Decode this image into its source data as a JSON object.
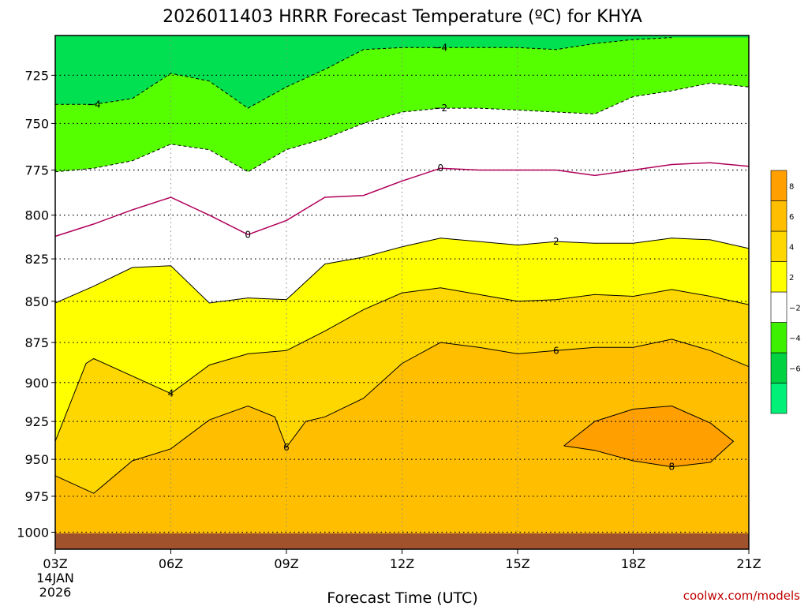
{
  "chart_data": {
    "type": "contour",
    "title": "2026011403 HRRR Forecast Temperature (ºC) for KHYA",
    "xlabel": "Forecast Time (UTC)",
    "ylabel": "",
    "x_ticks": [
      {
        "hour": 3,
        "label": "03Z",
        "label2": "14JAN",
        "label3": "2026"
      },
      {
        "hour": 6,
        "label": "06Z"
      },
      {
        "hour": 9,
        "label": "09Z"
      },
      {
        "hour": 12,
        "label": "12Z"
      },
      {
        "hour": 15,
        "label": "15Z"
      },
      {
        "hour": 18,
        "label": "18Z"
      },
      {
        "hour": 21,
        "label": "21Z"
      }
    ],
    "y_ticks": [
      725,
      750,
      775,
      800,
      825,
      850,
      875,
      900,
      925,
      950,
      975,
      1000
    ],
    "xlim": [
      3,
      21
    ],
    "ylim_hPa": [
      1012,
      705
    ],
    "y_scale": "log-pressure",
    "grid": "dotted",
    "legend": {
      "placement": "right",
      "levels": [
        {
          "label": "",
          "color": "#00f078"
        },
        {
          "label": "−6",
          "color": "#00d242"
        },
        {
          "label": "−4",
          "color": "#3cf000"
        },
        {
          "label": "−2",
          "color": "#ffffff"
        },
        {
          "label": "2",
          "color": "#ffff00"
        },
        {
          "label": "4",
          "color": "#ffd700"
        },
        {
          "label": "6",
          "color": "#ffbf00"
        },
        {
          "label": "8",
          "color": "#ff9f00"
        }
      ]
    },
    "contours": [
      {
        "label": "−4",
        "points": [
          [
            3,
            740
          ],
          [
            4,
            740
          ],
          [
            5,
            737
          ],
          [
            6,
            724
          ],
          [
            7,
            728
          ],
          [
            8,
            742
          ],
          [
            9,
            731
          ],
          [
            10,
            722
          ],
          [
            11,
            712
          ],
          [
            12,
            711
          ],
          [
            13,
            711
          ],
          [
            14,
            711
          ],
          [
            15,
            711
          ],
          [
            16,
            712
          ],
          [
            17,
            709
          ],
          [
            18,
            707
          ],
          [
            19,
            706
          ]
        ]
      },
      {
        "label": "−2",
        "points": [
          [
            3,
            776
          ],
          [
            4,
            774
          ],
          [
            5,
            770
          ],
          [
            6,
            761
          ],
          [
            7,
            764
          ],
          [
            8,
            776
          ],
          [
            9,
            764
          ],
          [
            10,
            758
          ],
          [
            11,
            750
          ],
          [
            12,
            744
          ],
          [
            13,
            742
          ],
          [
            14,
            742
          ],
          [
            15,
            743
          ],
          [
            16,
            744
          ],
          [
            17,
            745
          ],
          [
            18,
            736
          ],
          [
            19,
            733
          ],
          [
            20,
            729
          ],
          [
            21,
            731
          ]
        ]
      },
      {
        "label": "0",
        "points": [
          [
            3,
            812
          ],
          [
            4,
            805
          ],
          [
            5,
            797
          ],
          [
            6,
            790
          ],
          [
            7,
            800
          ],
          [
            8,
            811
          ],
          [
            9,
            803
          ],
          [
            10,
            790
          ],
          [
            11,
            789
          ],
          [
            12,
            781
          ],
          [
            13,
            774
          ],
          [
            14,
            775
          ],
          [
            15,
            775
          ],
          [
            16,
            775
          ],
          [
            17,
            778
          ],
          [
            18,
            775
          ],
          [
            19,
            772
          ],
          [
            20,
            771
          ],
          [
            21,
            773
          ]
        ]
      },
      {
        "label": "2",
        "points": [
          [
            3,
            851
          ],
          [
            4,
            841
          ],
          [
            5,
            830
          ],
          [
            6,
            829
          ],
          [
            7,
            851
          ],
          [
            8,
            848
          ],
          [
            9,
            849
          ],
          [
            10,
            828
          ],
          [
            11,
            824
          ],
          [
            12,
            818
          ],
          [
            13,
            813
          ],
          [
            14,
            815
          ],
          [
            15,
            817
          ],
          [
            16,
            815
          ],
          [
            17,
            816
          ],
          [
            18,
            816
          ],
          [
            19,
            813
          ],
          [
            20,
            814
          ],
          [
            21,
            819
          ]
        ]
      },
      {
        "label": "4",
        "points": [
          [
            3,
            938
          ],
          [
            3.8,
            888
          ],
          [
            4,
            885
          ],
          [
            6,
            907
          ],
          [
            7,
            889
          ],
          [
            8,
            882
          ],
          [
            9,
            880
          ],
          [
            10,
            868
          ],
          [
            11,
            855
          ],
          [
            12,
            845
          ],
          [
            13,
            842
          ],
          [
            14,
            846
          ],
          [
            15,
            850
          ],
          [
            16,
            849
          ],
          [
            17,
            846
          ],
          [
            18,
            847
          ],
          [
            19,
            843
          ],
          [
            20,
            847
          ],
          [
            21,
            852
          ]
        ]
      },
      {
        "label": "6",
        "points": [
          [
            3,
            961
          ],
          [
            4,
            973
          ],
          [
            5,
            951
          ],
          [
            6,
            943
          ],
          [
            7,
            924
          ],
          [
            8,
            915
          ],
          [
            8.7,
            922
          ],
          [
            9,
            942
          ],
          [
            9.5,
            925
          ],
          [
            10,
            922
          ],
          [
            11,
            910
          ],
          [
            12,
            888
          ],
          [
            13,
            875
          ],
          [
            14,
            878
          ],
          [
            15,
            882
          ],
          [
            16,
            880
          ],
          [
            17,
            878
          ],
          [
            18,
            878
          ],
          [
            19,
            873
          ],
          [
            20,
            880
          ],
          [
            21,
            890
          ]
        ]
      },
      {
        "label": "8",
        "points": [
          [
            16.2,
            941
          ],
          [
            17,
            925
          ],
          [
            18,
            917
          ],
          [
            19,
            915
          ],
          [
            20,
            926
          ],
          [
            20.6,
            938
          ],
          [
            20,
            952
          ],
          [
            19,
            955
          ],
          [
            18,
            951
          ],
          [
            17,
            944
          ],
          [
            16.2,
            941
          ]
        ]
      }
    ],
    "surface_color": "#a0522d"
  },
  "credit": "coolwx.com/models"
}
